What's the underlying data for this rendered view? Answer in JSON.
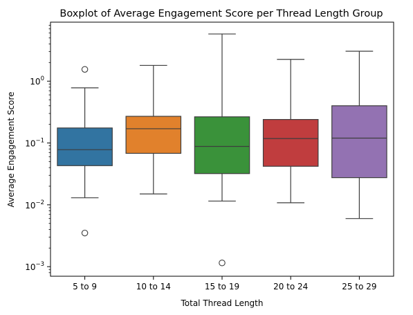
{
  "chart_data": {
    "type": "boxplot",
    "title": "Boxplot of Average Engagement Score per Thread Length Group",
    "xlabel": "Total Thread Length",
    "ylabel": "Average Engagement Score",
    "yscale": "log",
    "ylim": [
      0.0007,
      9
    ],
    "y_ticks": [
      {
        "value": 0.001,
        "label": "10^-3",
        "base": "10",
        "exp": "−3"
      },
      {
        "value": 0.01,
        "label": "10^-2",
        "base": "10",
        "exp": "−2"
      },
      {
        "value": 0.1,
        "label": "10^-1",
        "base": "10",
        "exp": "−1"
      },
      {
        "value": 1,
        "label": "10^0",
        "base": "10",
        "exp": "0"
      }
    ],
    "grid": false,
    "categories": [
      "5 to 9",
      "10 to 14",
      "15 to 19",
      "20 to 24",
      "25 to 29"
    ],
    "boxes": [
      {
        "category": "5 to 9",
        "color": "#3274a1",
        "whisker_low": 0.013,
        "q1": 0.043,
        "median": 0.078,
        "q3": 0.175,
        "whisker_high": 0.78,
        "outliers": [
          1.55,
          0.0035
        ]
      },
      {
        "category": "10 to 14",
        "color": "#e1812c",
        "whisker_low": 0.015,
        "q1": 0.068,
        "median": 0.17,
        "q3": 0.27,
        "whisker_high": 1.8,
        "outliers": []
      },
      {
        "category": "15 to 19",
        "color": "#3a923a",
        "whisker_low": 0.0115,
        "q1": 0.032,
        "median": 0.088,
        "q3": 0.265,
        "whisker_high": 5.8,
        "outliers": [
          0.00115
        ]
      },
      {
        "category": "20 to 24",
        "color": "#c03d3e",
        "whisker_low": 0.0108,
        "q1": 0.042,
        "median": 0.118,
        "q3": 0.24,
        "whisker_high": 2.25,
        "outliers": []
      },
      {
        "category": "25 to 29",
        "color": "#9372b2",
        "whisker_low": 0.006,
        "q1": 0.0275,
        "median": 0.12,
        "q3": 0.4,
        "whisker_high": 3.05,
        "outliers": []
      }
    ]
  }
}
